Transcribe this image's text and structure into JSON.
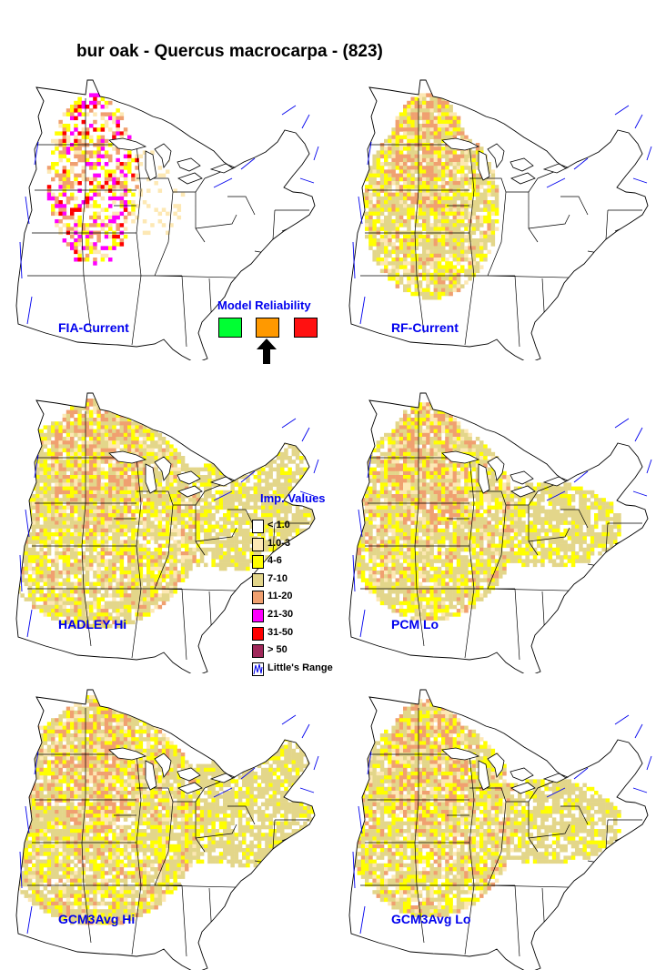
{
  "title": "bur oak - Quercus macrocarpa - (823)",
  "maps": [
    {
      "label": "FIA-Current",
      "variant": "fia",
      "spread": 0
    },
    {
      "label": "RF-Current",
      "variant": "model",
      "spread": 0
    },
    {
      "label": "HADLEY Hi",
      "variant": "model",
      "spread": 2
    },
    {
      "label": "PCM Lo",
      "variant": "model",
      "spread": 1
    },
    {
      "label": "GCM3Avg Hi",
      "variant": "model",
      "spread": 2
    },
    {
      "label": "GCM3Avg Lo",
      "variant": "model",
      "spread": 1
    }
  ],
  "model_reliability": {
    "title": "Model Reliability",
    "colors": [
      "#00ff33",
      "#ff9900",
      "#ff1111"
    ],
    "selected_index": 1
  },
  "legend": {
    "title": "Imp. Values",
    "items": [
      {
        "label": "< 1.0",
        "color": "#ffffff"
      },
      {
        "label": "1.0-3",
        "color": "#fde8b4"
      },
      {
        "label": "4-6",
        "color": "#ffff00"
      },
      {
        "label": "7-10",
        "color": "#e3d68a"
      },
      {
        "label": "11-20",
        "color": "#f0a070"
      },
      {
        "label": "21-30",
        "color": "#ff00ff"
      },
      {
        "label": "31-50",
        "color": "#ff0000"
      },
      {
        "label": "> 50",
        "color": "#a0285a"
      },
      {
        "label": "Little's Range",
        "color": "range"
      }
    ]
  }
}
